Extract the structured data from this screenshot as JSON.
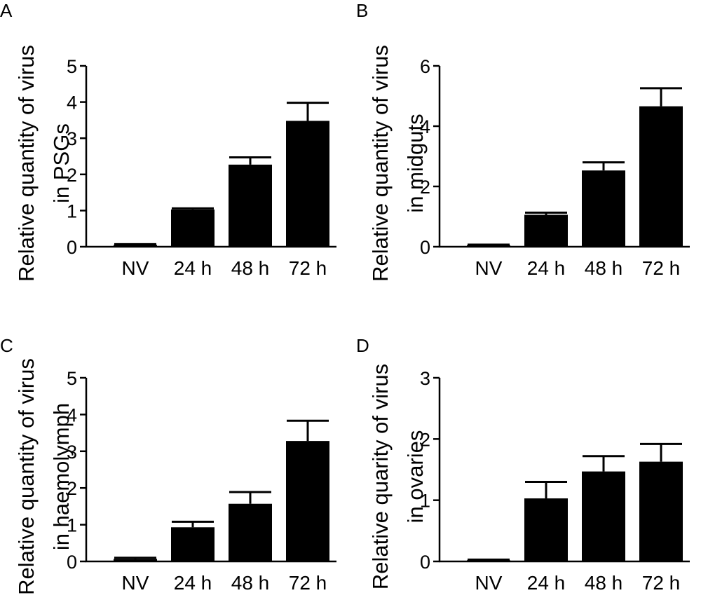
{
  "chart_data": [
    {
      "panel": "A",
      "type": "bar",
      "ylabel_lines": [
        "Relative quantity of virus",
        "in PSGs"
      ],
      "categories": [
        "NV",
        "24 h",
        "48 h",
        "72 h"
      ],
      "values": [
        0.05,
        1.03,
        2.27,
        3.48
      ],
      "errors": [
        0.02,
        0.03,
        0.2,
        0.5
      ],
      "ylim": [
        0,
        5
      ],
      "yticks": [
        0,
        1,
        2,
        3,
        4,
        5
      ]
    },
    {
      "panel": "B",
      "type": "bar",
      "ylabel_lines": [
        "Relative quantity of virus",
        "in midguts"
      ],
      "categories": [
        "NV",
        "24 h",
        "48 h",
        "72 h"
      ],
      "values": [
        0.05,
        1.06,
        2.53,
        4.66
      ],
      "errors": [
        0.02,
        0.07,
        0.27,
        0.6
      ],
      "ylim": [
        0,
        6
      ],
      "yticks": [
        0,
        2,
        4,
        6
      ]
    },
    {
      "panel": "C",
      "type": "bar",
      "ylabel_lines": [
        "Relative quantity of virus",
        "in haemolymph"
      ],
      "categories": [
        "NV",
        "24 h",
        "48 h",
        "72 h"
      ],
      "values": [
        0.07,
        0.93,
        1.57,
        3.28
      ],
      "errors": [
        0.03,
        0.15,
        0.32,
        0.55
      ],
      "ylim": [
        0,
        5
      ],
      "yticks": [
        0,
        1,
        2,
        3,
        4,
        5
      ]
    },
    {
      "panel": "D",
      "type": "bar",
      "ylabel_lines": [
        "Relative quarity of virus",
        "in ovaries"
      ],
      "categories": [
        "NV",
        "24 h",
        "48 h",
        "72 h"
      ],
      "values": [
        0.02,
        1.03,
        1.47,
        1.63
      ],
      "errors": [
        0.01,
        0.27,
        0.25,
        0.29
      ],
      "ylim": [
        0,
        3
      ],
      "yticks": [
        0,
        1,
        2,
        3
      ]
    }
  ]
}
